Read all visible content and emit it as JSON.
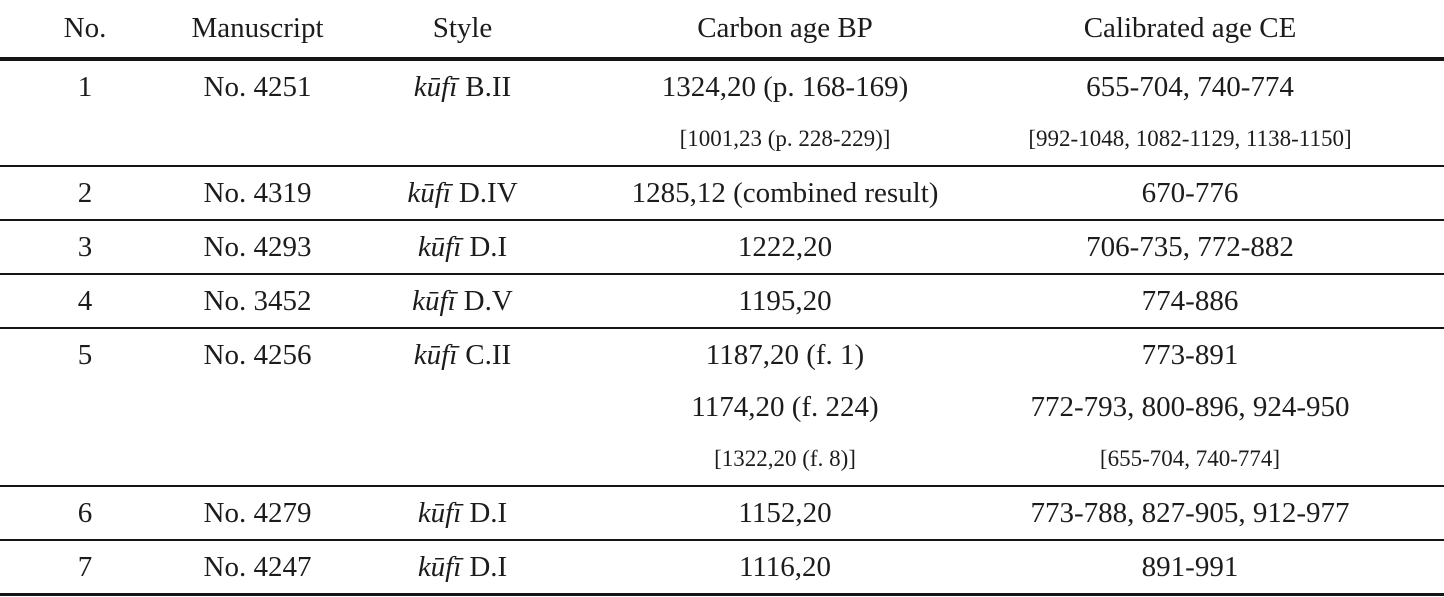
{
  "table": {
    "columns": [
      {
        "label": "No."
      },
      {
        "label": "Manuscript"
      },
      {
        "label": "Style"
      },
      {
        "label": "Carbon age BP"
      },
      {
        "label": "Calibrated age CE"
      }
    ],
    "rows": [
      {
        "no": "1",
        "manuscript": "No. 4251",
        "style": {
          "script": "kūfī",
          "designation": "B.II"
        },
        "lines": [
          {
            "carbon": "1324,20 (p. 168-169)",
            "calibrated": "655-704, 740-774",
            "small": false
          },
          {
            "carbon": "[1001,23 (p. 228-229)]",
            "calibrated": "[992-1048, 1082-1129, 1138-1150]",
            "small": true
          }
        ]
      },
      {
        "no": "2",
        "manuscript": "No. 4319",
        "style": {
          "script": "kūfī",
          "designation": "D.IV"
        },
        "lines": [
          {
            "carbon": "1285,12 (combined result)",
            "calibrated": "670-776",
            "small": false
          }
        ]
      },
      {
        "no": "3",
        "manuscript": "No. 4293",
        "style": {
          "script": "kūfī",
          "designation": "D.I"
        },
        "lines": [
          {
            "carbon": "1222,20",
            "calibrated": "706-735, 772-882",
            "small": false
          }
        ]
      },
      {
        "no": "4",
        "manuscript": "No. 3452",
        "style": {
          "script": "kūfī",
          "designation": "D.V"
        },
        "lines": [
          {
            "carbon": "1195,20",
            "calibrated": "774-886",
            "small": false
          }
        ]
      },
      {
        "no": "5",
        "manuscript": "No. 4256",
        "style": {
          "script": "kūfī",
          "designation": "C.II"
        },
        "lines": [
          {
            "carbon": "1187,20 (f. 1)",
            "calibrated": "773-891",
            "small": false
          },
          {
            "carbon": "1174,20 (f. 224)",
            "calibrated": "772-793, 800-896, 924-950",
            "small": false
          },
          {
            "carbon": "[1322,20 (f. 8)]",
            "calibrated": "[655-704, 740-774]",
            "small": true
          }
        ]
      },
      {
        "no": "6",
        "manuscript": "No. 4279",
        "style": {
          "script": "kūfī",
          "designation": "D.I"
        },
        "lines": [
          {
            "carbon": "1152,20",
            "calibrated": "773-788, 827-905, 912-977",
            "small": false
          }
        ]
      },
      {
        "no": "7",
        "manuscript": "No. 4247",
        "style": {
          "script": "kūfī",
          "designation": "D.I"
        },
        "lines": [
          {
            "carbon": "1116,20",
            "calibrated": "891-991",
            "small": false
          }
        ]
      }
    ]
  }
}
